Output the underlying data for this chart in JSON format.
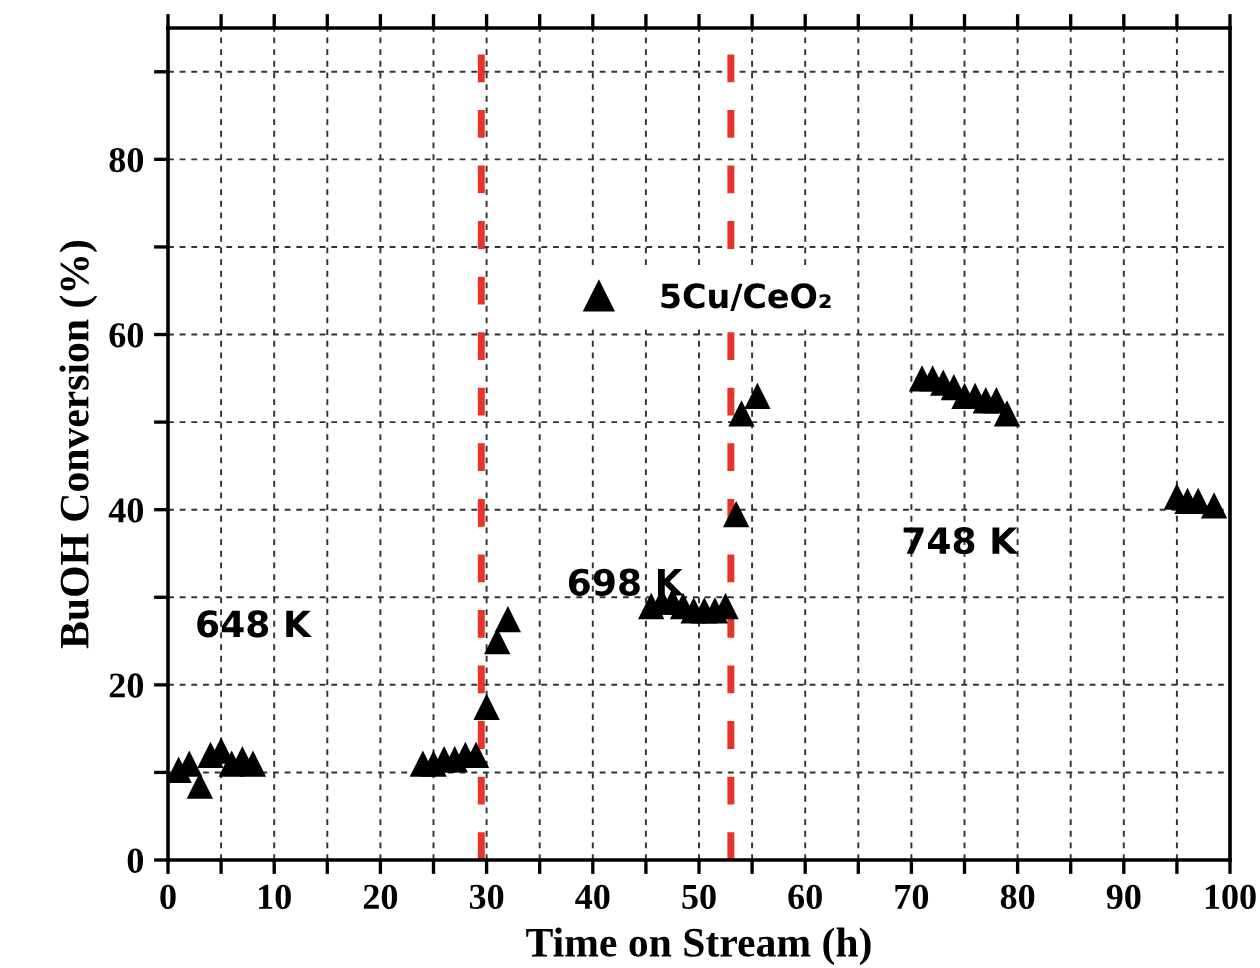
{
  "chart_data": {
    "type": "scatter",
    "xlabel": "Time on Stream (h)",
    "ylabel": "BuOH Conversion (%)",
    "series": [
      {
        "name": "5Cu/CeO₂",
        "color": "#000000",
        "x": [
          1,
          2,
          3,
          4,
          5,
          6,
          7,
          8,
          24,
          25,
          26,
          27,
          28,
          29,
          30,
          31,
          32,
          45.5,
          46.5,
          47.5,
          48.5,
          49.5,
          50.5,
          51.5,
          52.5,
          53.5,
          54,
          55.5,
          71,
          72,
          73,
          74,
          75,
          76,
          77,
          78,
          79,
          95,
          96,
          97,
          98.5
        ],
        "values": [
          10.3,
          11,
          8.5,
          12,
          12.5,
          11,
          11.5,
          11,
          11,
          11,
          11.5,
          11.5,
          12,
          12,
          17.5,
          25,
          27.5,
          29,
          29.5,
          29.5,
          29,
          28.5,
          28.5,
          28.5,
          29,
          39.5,
          51,
          53,
          55,
          55,
          54.5,
          54,
          53,
          53,
          52.5,
          52.5,
          51,
          41.5,
          41,
          41,
          40.5
        ]
      }
    ],
    "marker": "triangle",
    "legend": "top",
    "grid": true,
    "xlim": [
      0,
      100
    ],
    "ylim": [
      0,
      95
    ],
    "xticks": [
      0,
      {
        "value": 5,
        "label": null
      },
      10,
      {
        "value": 15,
        "label": null
      },
      20,
      {
        "value": 25,
        "label": null
      },
      30,
      {
        "value": 35,
        "label": null
      },
      40,
      {
        "value": 45,
        "label": null
      },
      50,
      {
        "value": 55,
        "label": null
      },
      60,
      {
        "value": 65,
        "label": null
      },
      70,
      {
        "value": 75,
        "label": null
      },
      80,
      {
        "value": 85,
        "label": null
      },
      90,
      {
        "value": 95,
        "label": null
      },
      100
    ],
    "yticks": [
      0,
      {
        "value": 10,
        "label": null
      },
      20,
      {
        "value": 30,
        "label": null
      },
      40,
      {
        "value": 50,
        "label": null
      },
      60,
      {
        "value": 70,
        "label": null
      },
      80,
      {
        "value": 90,
        "label": null
      }
    ],
    "ref_lines": [
      {
        "axis": "x",
        "value": 29.5,
        "color": "#e8332a",
        "line_style": "dashed"
      },
      {
        "axis": "x",
        "value": 53,
        "color": "#e8332a",
        "line_style": "dashed"
      }
    ],
    "annotations": [
      "648 K",
      "698 K",
      "748 K"
    ]
  }
}
